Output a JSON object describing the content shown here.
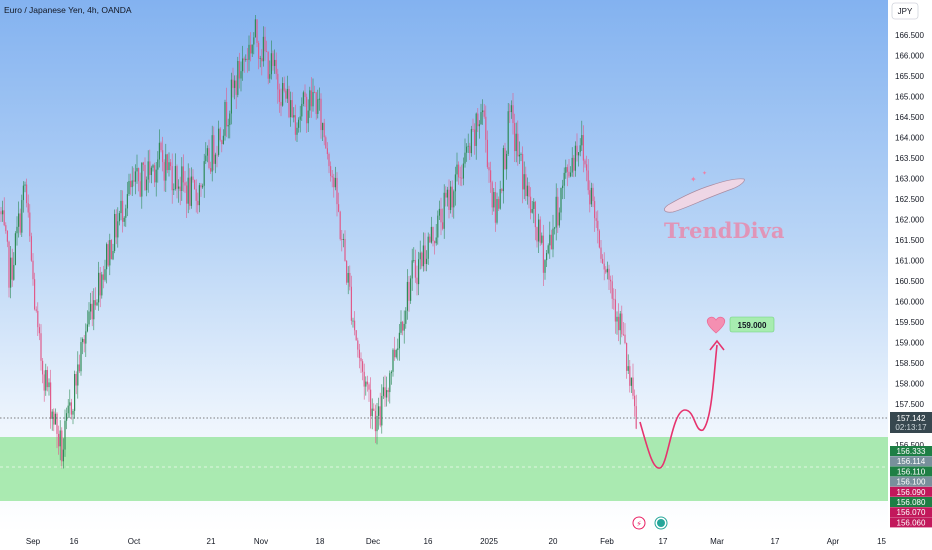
{
  "header": {
    "symbol_title": "Euro / Japanese Yen, 4h, OANDA",
    "currency_button": "JPY"
  },
  "watermark": {
    "brand": "TrendDiva"
  },
  "price_axis": {
    "ticks": [
      "166.500",
      "166.000",
      "165.500",
      "165.000",
      "164.500",
      "164.000",
      "163.500",
      "163.000",
      "162.500",
      "162.000",
      "161.500",
      "161.000",
      "160.500",
      "160.000",
      "159.500",
      "159.000",
      "158.500",
      "158.000",
      "157.500",
      "156.500"
    ],
    "current_price": "157.142",
    "countdown": "02:13:17",
    "zone_labels": [
      {
        "text": "156.333",
        "color": "#1e7f45"
      },
      {
        "text": "156.114",
        "color": "#78909c"
      },
      {
        "text": "156.110",
        "color": "#1e7f45"
      },
      {
        "text": "156.100",
        "color": "#78909c"
      },
      {
        "text": "156.090",
        "color": "#c2185b"
      },
      {
        "text": "156.080",
        "color": "#1e7f45"
      },
      {
        "text": "156.070",
        "color": "#c2185b"
      },
      {
        "text": "156.060",
        "color": "#c2185b"
      }
    ]
  },
  "time_axis": {
    "labels": [
      "Sep",
      "16",
      "Oct",
      "21",
      "Nov",
      "18",
      "Dec",
      "16",
      "2025",
      "20",
      "Feb",
      "17",
      "Mar",
      "17",
      "Apr",
      "15"
    ]
  },
  "target": {
    "label": "159.000"
  },
  "colors": {
    "up": "#2e8b57",
    "down": "#e05a8a",
    "bg_top": "#83b2f0",
    "bg_bottom": "#ffffff",
    "support_zone": "#9ce6a3",
    "projection": "#e6336e"
  },
  "chart_data": {
    "type": "candlestick",
    "series": "EUR/JPY",
    "timeframe": "4h",
    "ylim": [
      155.8,
      166.8
    ],
    "path_points": [
      {
        "x": "Sep",
        "y": 162.2
      },
      {
        "x": "Sep",
        "y": 160.6
      },
      {
        "x": "Sep",
        "y": 162.8
      },
      {
        "x": "Sep",
        "y": 159.0
      },
      {
        "x": "Sep",
        "y": 157.6
      },
      {
        "x": "16",
        "y": 156.3
      },
      {
        "x": "16",
        "y": 158.0
      },
      {
        "x": "Oct",
        "y": 159.8
      },
      {
        "x": "Oct",
        "y": 162.5
      },
      {
        "x": "Oct",
        "y": 163.5
      },
      {
        "x": "Oct",
        "y": 162.5
      },
      {
        "x": "21",
        "y": 164.5
      },
      {
        "x": "21",
        "y": 165.8
      },
      {
        "x": "Nov",
        "y": 166.5
      },
      {
        "x": "Nov",
        "y": 164.5
      },
      {
        "x": "18",
        "y": 165.0
      },
      {
        "x": "18",
        "y": 163.5
      },
      {
        "x": "18",
        "y": 161.0
      },
      {
        "x": "Dec",
        "y": 158.5
      },
      {
        "x": "Dec",
        "y": 157.0
      },
      {
        "x": "16",
        "y": 160.5
      },
      {
        "x": "16",
        "y": 162.0
      },
      {
        "x": "2025",
        "y": 164.0
      },
      {
        "x": "2025",
        "y": 164.8
      },
      {
        "x": "2025",
        "y": 162.0
      },
      {
        "x": "2025",
        "y": 164.5
      },
      {
        "x": "20",
        "y": 162.5
      },
      {
        "x": "20",
        "y": 161.0
      },
      {
        "x": "20",
        "y": 163.0
      },
      {
        "x": "20",
        "y": 164.0
      },
      {
        "x": "Feb",
        "y": 161.5
      },
      {
        "x": "Feb",
        "y": 159.5
      },
      {
        "x": "Feb",
        "y": 157.0
      }
    ],
    "support_zone": [
      156.0,
      156.8
    ],
    "projection_target": 159.0
  }
}
